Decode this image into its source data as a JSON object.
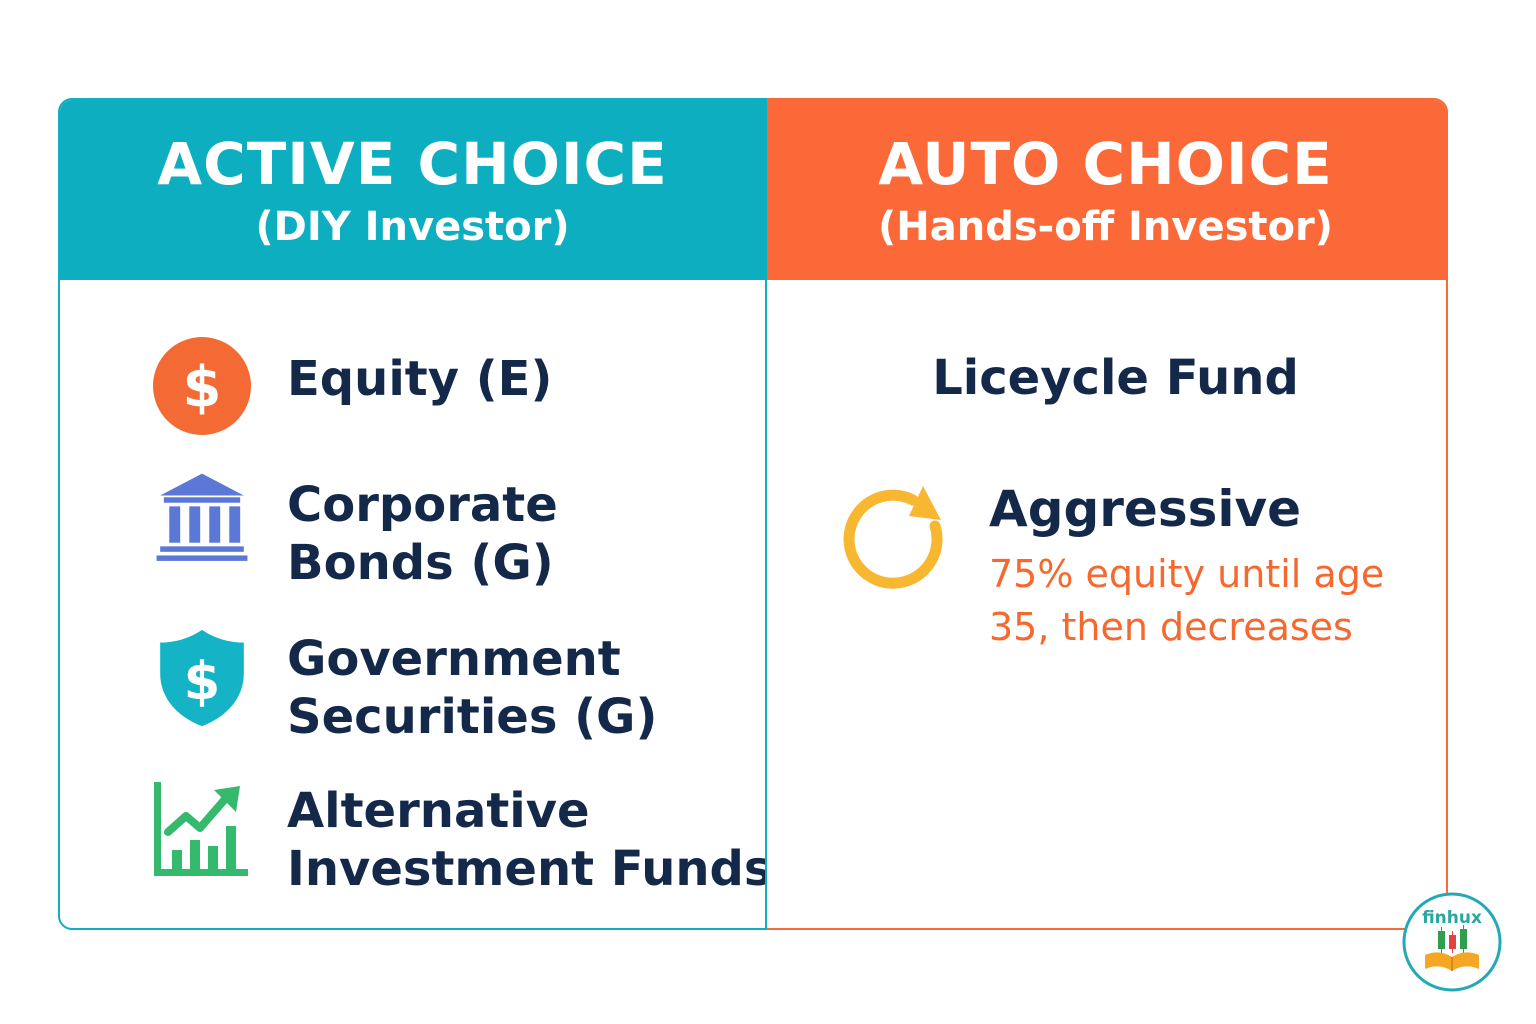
{
  "active": {
    "title": "ACTIVE CHOICE",
    "subtitle": "(DIY Investor)",
    "items": [
      {
        "label": "Equity (E)",
        "icon": "dollar-circle-icon"
      },
      {
        "label": "Corporate\nBonds (G)",
        "icon": "bank-icon"
      },
      {
        "label": "Government\nSecurities (G)",
        "icon": "shield-dollar-icon"
      },
      {
        "label": "Alternative\nInvestment Funds",
        "icon": "growth-chart-icon"
      }
    ]
  },
  "auto": {
    "title": "AUTO CHOICE",
    "subtitle": "(Hands-off Investor)",
    "fund_name": "Liceycle Fund",
    "plan": {
      "name": "Aggressive",
      "description": "75% equity until age 35, then decreases",
      "icon": "cycle-arrow-icon"
    }
  },
  "logo": {
    "text": "finhux"
  },
  "colors": {
    "teal": "#0eaec1",
    "orange": "#fb6939",
    "navy": "#14294a",
    "blue": "#5b78d6",
    "green": "#35b96d",
    "yellow": "#f7b731"
  }
}
